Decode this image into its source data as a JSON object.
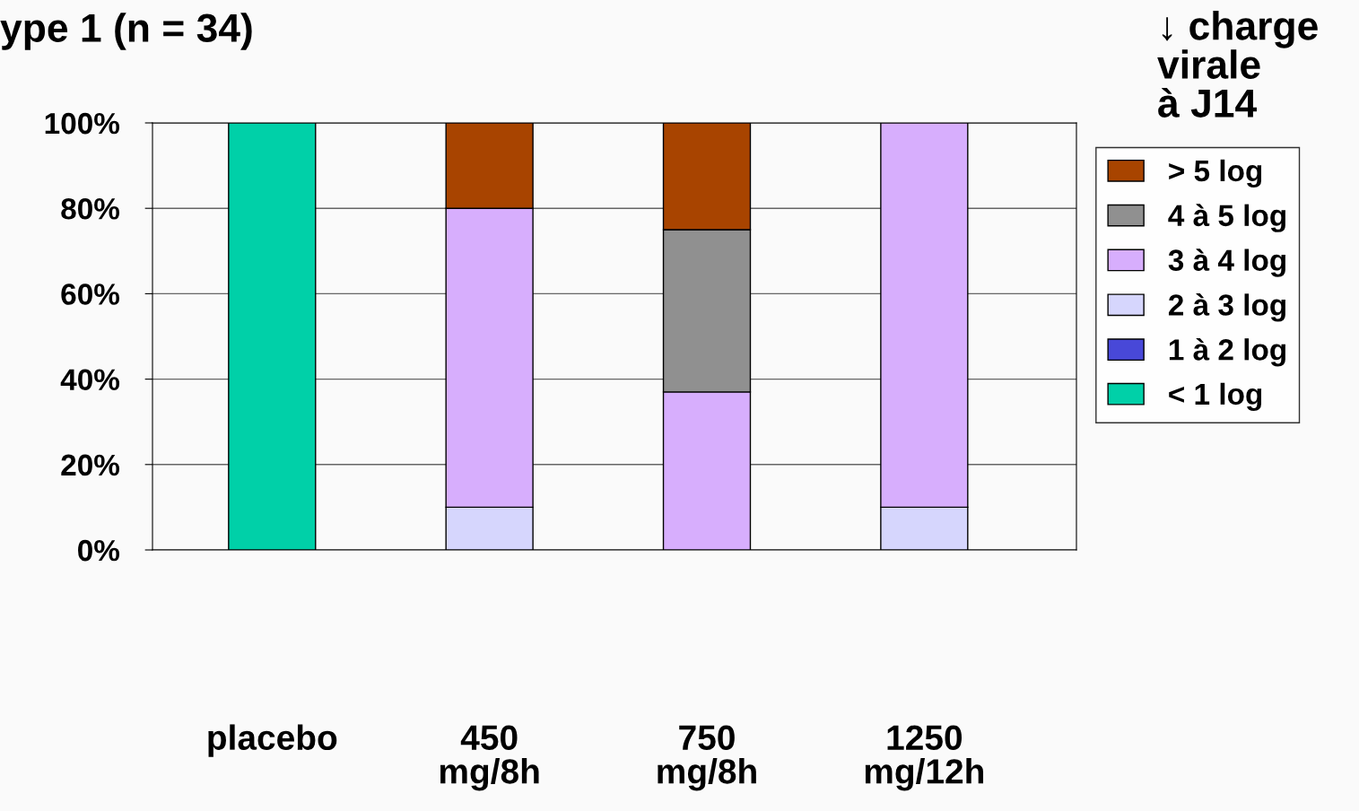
{
  "chart_data": {
    "type": "bar",
    "stacked": true,
    "title": "ype 1 (n = 34)",
    "legend_title": "↓ charge\nvirale\nà J14",
    "categories": [
      "placebo",
      "450\nmg/8h",
      "750\nmg/8h",
      "1250\nmg/12h"
    ],
    "series": [
      {
        "name": "< 1 log",
        "color": "#00d0a8",
        "values": [
          100,
          0,
          0,
          0
        ]
      },
      {
        "name": "1 à 2 log",
        "color": "#4848d8",
        "values": [
          0,
          0,
          0,
          0
        ]
      },
      {
        "name": "2 à 3 log",
        "color": "#d6d6fd",
        "values": [
          0,
          10,
          0,
          10
        ]
      },
      {
        "name": "3 à 4 log",
        "color": "#d7aefd",
        "values": [
          0,
          70,
          37,
          90
        ]
      },
      {
        "name": "4 à 5 log",
        "color": "#909090",
        "values": [
          0,
          0,
          38,
          0
        ]
      },
      {
        "name": "> 5 log",
        "color": "#a84400",
        "values": [
          0,
          20,
          25,
          0
        ]
      }
    ],
    "ylim": [
      0,
      100
    ],
    "yticks": [
      {
        "value": 0,
        "label": "0%"
      },
      {
        "value": 20,
        "label": "20%"
      },
      {
        "value": 40,
        "label": "40%"
      },
      {
        "value": 60,
        "label": "60%"
      },
      {
        "value": 80,
        "label": "80%"
      },
      {
        "value": 100,
        "label": "100%"
      }
    ],
    "grid": "y",
    "legend": "right"
  }
}
